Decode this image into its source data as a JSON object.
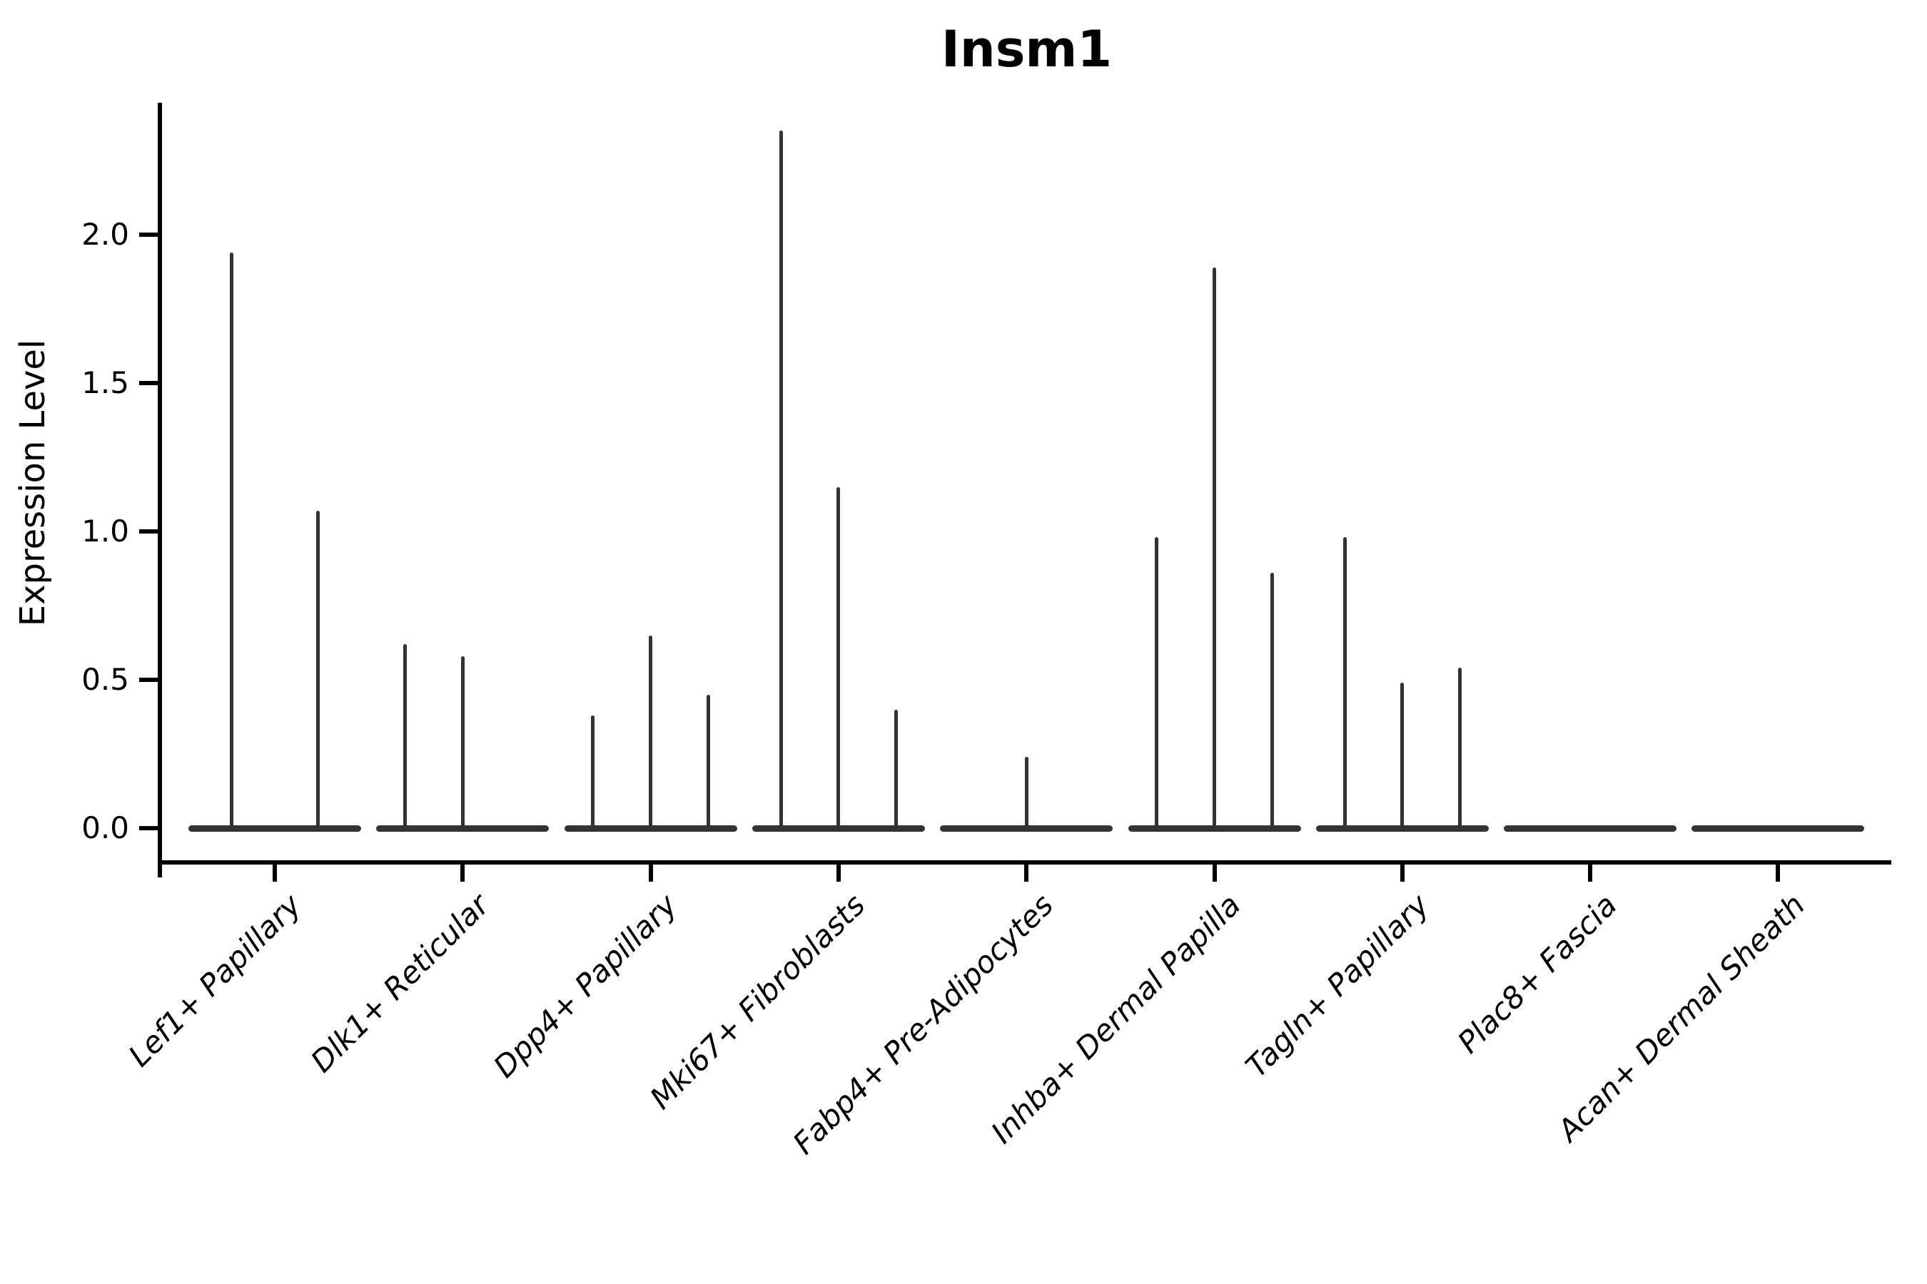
{
  "title": "Insm1",
  "ylabel": "Expression Level",
  "chart_data": {
    "type": "violin",
    "title": "Insm1",
    "xlabel": "",
    "ylabel": "Expression Level",
    "ylim": [
      0,
      2.45
    ],
    "yticks": [
      "0.0",
      "0.5",
      "1.0",
      "1.5",
      "2.0"
    ],
    "ytick_values": [
      0.0,
      0.5,
      1.0,
      1.5,
      2.0
    ],
    "grid": "off",
    "legend": "none",
    "line_color": "#333333",
    "axis_color": "#000000",
    "categories": [
      "Lef1+ Papillary",
      "Dlk1+ Reticular",
      "Dpp4+ Papillary",
      "Mki67+ Fibroblasts",
      "Fabp4+ Pre-Adipocytes",
      "Inhba+ Dermal Papilla",
      "Tagln+ Papillary",
      "Plac8+ Fascia",
      "Acan+ Dermal Sheath"
    ],
    "groups": [
      {
        "category": "Lef1+ Papillary",
        "violin_max_values": [
          1.94,
          1.07
        ]
      },
      {
        "category": "Dlk1+ Reticular",
        "violin_max_values": [
          0.62,
          0.58,
          0
        ]
      },
      {
        "category": "Dpp4+ Papillary",
        "violin_max_values": [
          0.38,
          0.65,
          0.45
        ]
      },
      {
        "category": "Mki67+ Fibroblasts",
        "violin_max_values": [
          2.35,
          1.15,
          0.4
        ]
      },
      {
        "category": "Fabp4+ Pre-Adipocytes",
        "violin_max_values": [
          0,
          0.24,
          0
        ]
      },
      {
        "category": "Inhba+ Dermal Papilla",
        "violin_max_values": [
          0.98,
          1.89,
          0.86
        ]
      },
      {
        "category": "Tagln+ Papillary",
        "violin_max_values": [
          0.98,
          0.49,
          0.54
        ]
      },
      {
        "category": "Plac8+ Fascia",
        "violin_max_values": [
          0,
          0,
          0
        ]
      },
      {
        "category": "Acan+ Dermal Sheath",
        "violin_max_values": [
          0,
          0,
          0
        ]
      }
    ]
  }
}
